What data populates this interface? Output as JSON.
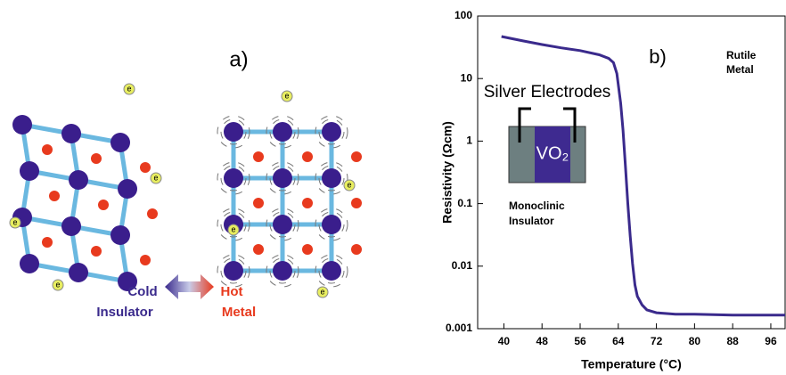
{
  "figure_a": {
    "label": "a)",
    "cold_label": [
      "Cold",
      "Insulator"
    ],
    "hot_label": [
      "Hot",
      "Metal"
    ],
    "electron": "e"
  },
  "chart_data": {
    "type": "line",
    "panel_label": "b)",
    "x_label": "Temperature (°C)",
    "y_label": "Resistivity (Ωcm)",
    "xlim": [
      34.5,
      99
    ],
    "xticks": [
      40,
      48,
      56,
      64,
      72,
      80,
      88,
      96
    ],
    "ylim": [
      0.001,
      100
    ],
    "yticks": [
      0.001,
      0.01,
      0.1,
      1,
      10,
      100
    ],
    "log_y": true,
    "annotations": {
      "rutile": [
        "Rutile",
        "Metal"
      ],
      "monoclinic": [
        "Monoclinic",
        "Insulator"
      ],
      "electrodes": "Silver Electrodes",
      "sample": "VO₂"
    },
    "series": [
      {
        "color": "#3a2a8c",
        "x": [
          39.5,
          44,
          48,
          52,
          56,
          60,
          62,
          63,
          63.7,
          64.5,
          65,
          65.5,
          66,
          66.5,
          67,
          67.5,
          68,
          69,
          70,
          72,
          76,
          80,
          88,
          96,
          99
        ],
        "values": [
          47,
          40,
          35,
          31,
          28,
          24,
          21,
          18,
          12,
          4,
          1.5,
          0.4,
          0.1,
          0.03,
          0.011,
          0.005,
          0.0033,
          0.0024,
          0.002,
          0.0018,
          0.0017,
          0.0017,
          0.00165,
          0.00165,
          0.00165
        ]
      }
    ]
  }
}
